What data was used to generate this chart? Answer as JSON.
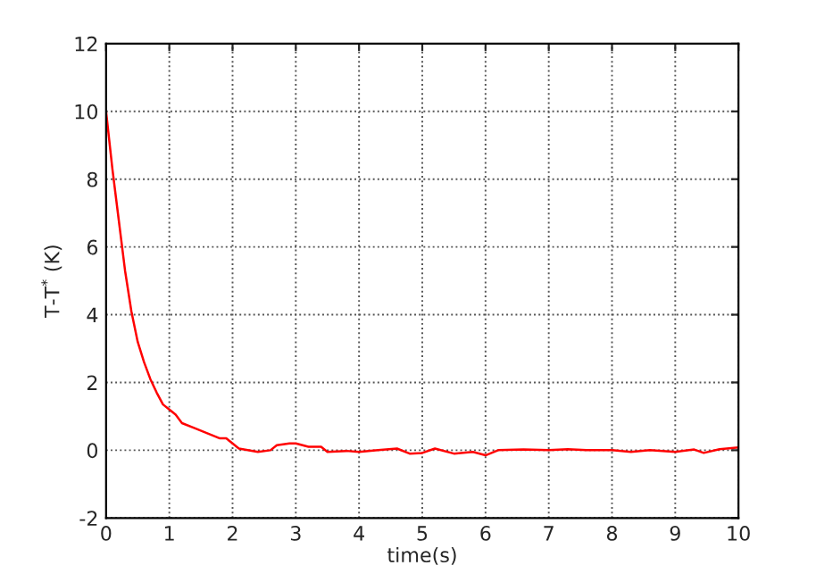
{
  "chart_data": {
    "type": "line",
    "xlabel": "time(s)",
    "ylabel": "T-T$^{*}$ (K)",
    "xlim": [
      0,
      10
    ],
    "ylim": [
      -2,
      12
    ],
    "xticks": [
      0,
      1,
      2,
      3,
      4,
      5,
      6,
      7,
      8,
      9,
      10
    ],
    "yticks": [
      -2,
      0,
      2,
      4,
      6,
      8,
      10,
      12
    ],
    "grid": true,
    "line_style": "solid",
    "series": [
      {
        "color": "#ff0000",
        "x": [
          0,
          0.1,
          0.2,
          0.3,
          0.4,
          0.5,
          0.6,
          0.7,
          0.8,
          0.9,
          1.0,
          1.1,
          1.2,
          1.4,
          1.6,
          1.8,
          1.9,
          2.0,
          2.1,
          2.4,
          2.6,
          2.7,
          2.9,
          3.0,
          3.2,
          3.4,
          3.5,
          3.8,
          4.0,
          4.3,
          4.6,
          4.8,
          5.0,
          5.2,
          5.5,
          5.8,
          6.0,
          6.2,
          6.6,
          7.0,
          7.3,
          7.6,
          8.0,
          8.3,
          8.6,
          9.0,
          9.3,
          9.45,
          9.7,
          10
        ],
        "values": [
          10,
          8.3,
          6.8,
          5.3,
          4.1,
          3.2,
          2.6,
          2.1,
          1.7,
          1.35,
          1.2,
          1.05,
          0.8,
          0.65,
          0.5,
          0.35,
          0.35,
          0.2,
          0.05,
          -0.05,
          0.0,
          0.15,
          0.2,
          0.2,
          0.1,
          0.1,
          -0.05,
          -0.02,
          -0.05,
          0.0,
          0.05,
          -0.1,
          -0.08,
          0.05,
          -0.1,
          -0.05,
          -0.15,
          0.0,
          0.02,
          0.0,
          0.03,
          0.0,
          0.0,
          -0.05,
          0.0,
          -0.05,
          0.02,
          -0.08,
          0.03,
          0.08
        ]
      }
    ]
  }
}
